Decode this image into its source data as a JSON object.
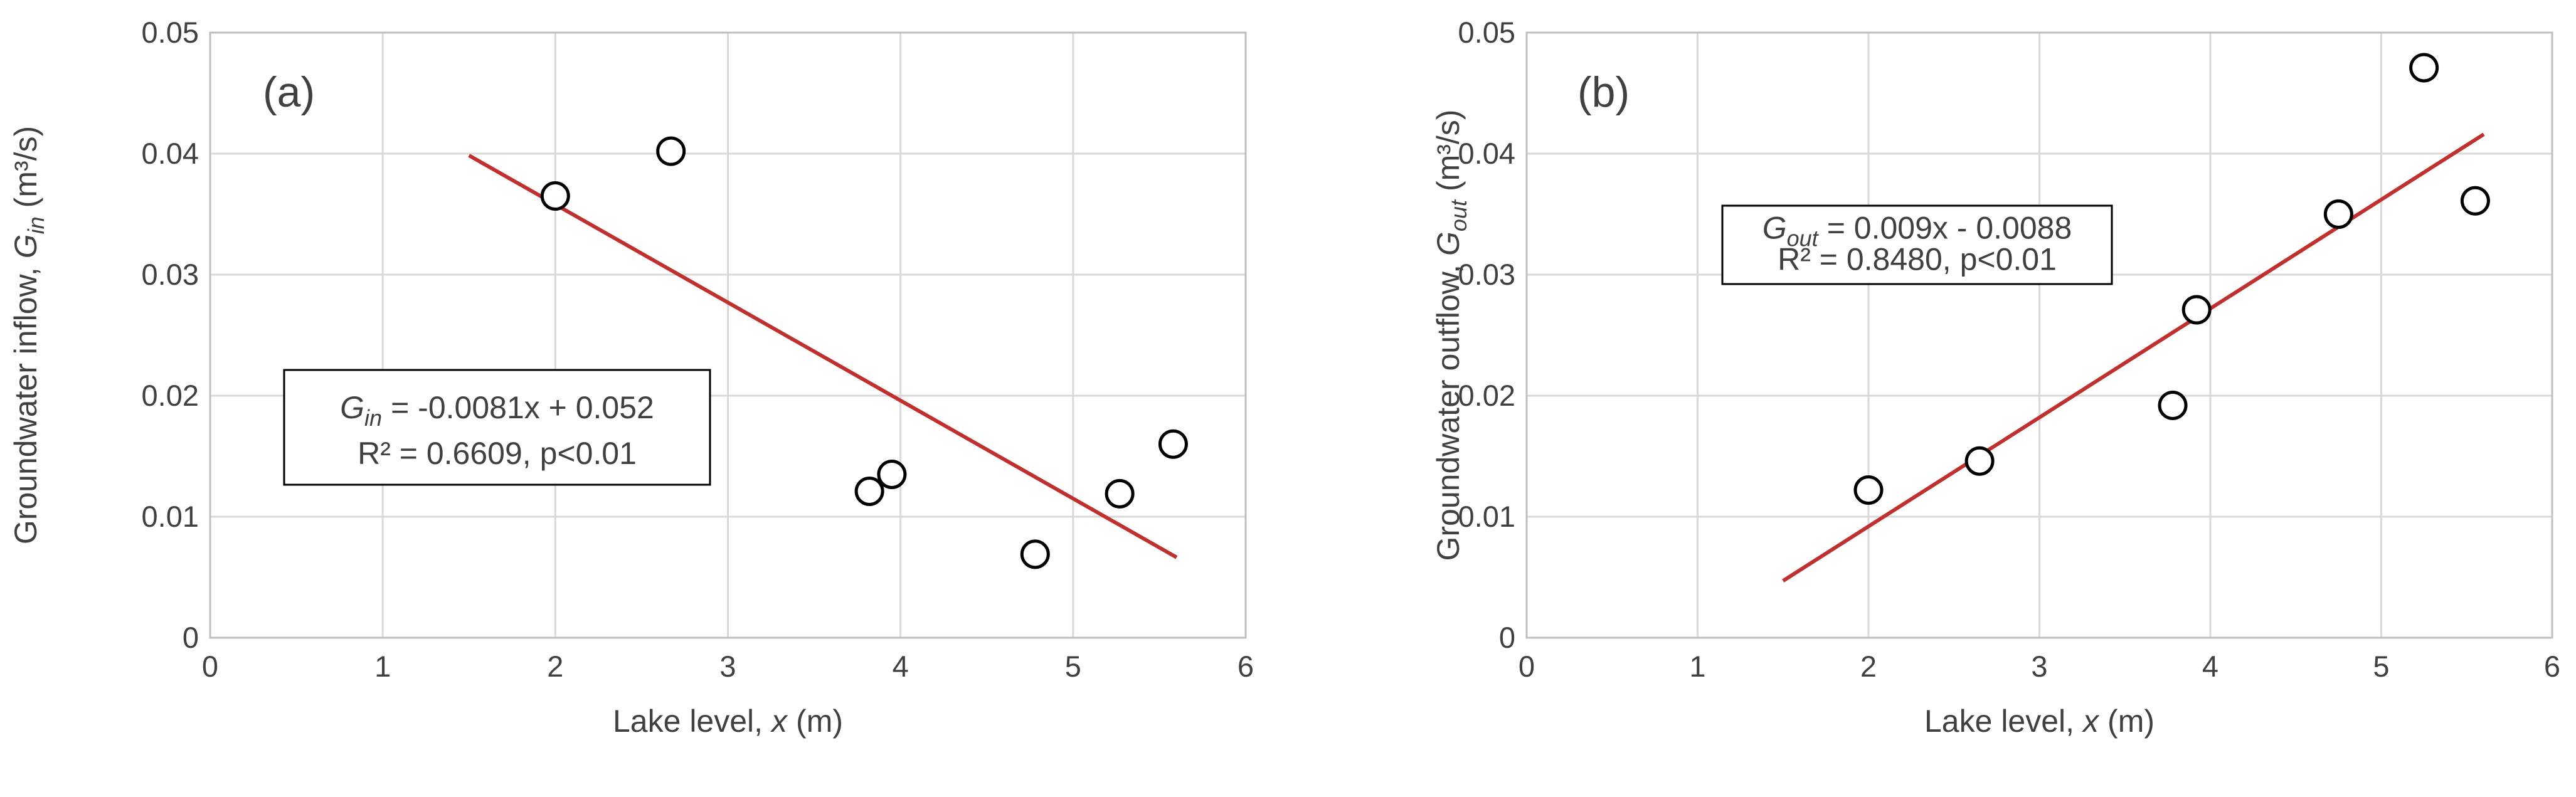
{
  "chart_data": [
    {
      "type": "scatter",
      "panel_label": "(a)",
      "xlabel": {
        "text": "Lake level,",
        "symbol": "x",
        "unit": "(m)"
      },
      "ylabel": {
        "text": "Groundwater inflow,",
        "symbol": "G",
        "subscript": "in",
        "unit": "(m³/s)"
      },
      "x": [
        2.0,
        2.67,
        3.82,
        3.95,
        4.78,
        5.27,
        5.58
      ],
      "values": [
        0.0365,
        0.0402,
        0.0121,
        0.0135,
        0.0069,
        0.0119,
        0.016
      ],
      "color": "#000000",
      "trendline": {
        "slope": -0.0081,
        "intercept": 0.052,
        "x_range": [
          1.5,
          5.6
        ],
        "color": "#c0302e"
      },
      "annotation": {
        "symbol": "G",
        "subscript": "in",
        "equation": "= -0.0081x + 0.052",
        "stats": "R² = 0.6609, p<0.01"
      },
      "xlim": [
        0,
        6
      ],
      "xticks": [
        0,
        1,
        2,
        3,
        4,
        5,
        6
      ],
      "ylim": [
        0,
        0.05
      ],
      "yticks": [
        0,
        0.01,
        0.02,
        0.03,
        0.04,
        0.05
      ],
      "grid": true
    },
    {
      "type": "scatter",
      "panel_label": "(b)",
      "xlabel": {
        "text": "Lake level,",
        "symbol": "x",
        "unit": "(m)"
      },
      "ylabel": {
        "text": "Groundwater outflow,",
        "symbol": "G",
        "subscript": "out",
        "unit": "(m³/s)"
      },
      "x": [
        2.0,
        2.65,
        3.78,
        3.92,
        4.75,
        5.25,
        5.55
      ],
      "values": [
        0.0122,
        0.0146,
        0.0192,
        0.0271,
        0.035,
        0.0471,
        0.0361
      ],
      "color": "#000000",
      "trendline": {
        "slope": 0.009,
        "intercept": -0.0088,
        "x_range": [
          1.5,
          5.6
        ],
        "color": "#c0302e"
      },
      "annotation": {
        "symbol": "G",
        "subscript": "out",
        "equation": "= 0.009x - 0.0088",
        "stats": "R² = 0.8480, p<0.01"
      },
      "xlim": [
        0,
        6
      ],
      "xticks": [
        0,
        1,
        2,
        3,
        4,
        5,
        6
      ],
      "ylim": [
        0,
        0.05
      ],
      "yticks": [
        0,
        0.01,
        0.02,
        0.03,
        0.04,
        0.05
      ],
      "grid": true
    }
  ]
}
